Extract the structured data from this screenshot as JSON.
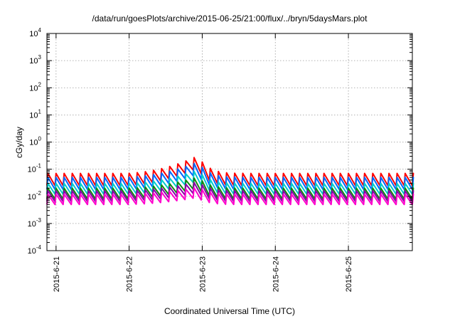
{
  "chart_data": {
    "type": "line",
    "title": "/data/run/goesPlots/archive/2015-06-25/21:00/flux/../bryn/5daysMars.plot",
    "xlabel": "Coordinated Universal Time (UTC)",
    "ylabel": "cGy/day",
    "yscale": "log",
    "ylim": [
      0.0001,
      10000
    ],
    "xlim": [
      "2015-06-20 21:00",
      "2015-06-25 21:00"
    ],
    "x_ticks": [
      "2015-6-21",
      "2015-6-22",
      "2015-6-23",
      "2015-6-24",
      "2015-6-25"
    ],
    "y_ticks": [
      {
        "base": "10",
        "exp": "4"
      },
      {
        "base": "10",
        "exp": "3"
      },
      {
        "base": "10",
        "exp": "2"
      },
      {
        "base": "10",
        "exp": "1"
      },
      {
        "base": "10",
        "exp": "0"
      },
      {
        "base": "10",
        "exp": "-1"
      },
      {
        "base": "10",
        "exp": "-2"
      },
      {
        "base": "10",
        "exp": "-3"
      },
      {
        "base": "10",
        "exp": "-4"
      }
    ],
    "grid": true,
    "legend": "none",
    "sawtooth_cycles_per_day": 9,
    "series": [
      {
        "color": "#ff0000",
        "base_peak": 0.07,
        "base_trough": 0.025
      },
      {
        "color": "#0066ff",
        "base_peak": 0.05,
        "base_trough": 0.018
      },
      {
        "color": "#00cccc",
        "base_peak": 0.03,
        "base_trough": 0.012
      },
      {
        "color": "#118811",
        "base_peak": 0.02,
        "base_trough": 0.008
      },
      {
        "color": "#8800aa",
        "base_peak": 0.016,
        "base_trough": 0.0065
      },
      {
        "color": "#ff00cc",
        "base_peak": 0.012,
        "base_trough": 0.005
      }
    ],
    "event": {
      "peak_time": "2015-06-22 22:00",
      "peak_value": 0.3,
      "onset_time": "2015-06-21 21:00"
    }
  }
}
